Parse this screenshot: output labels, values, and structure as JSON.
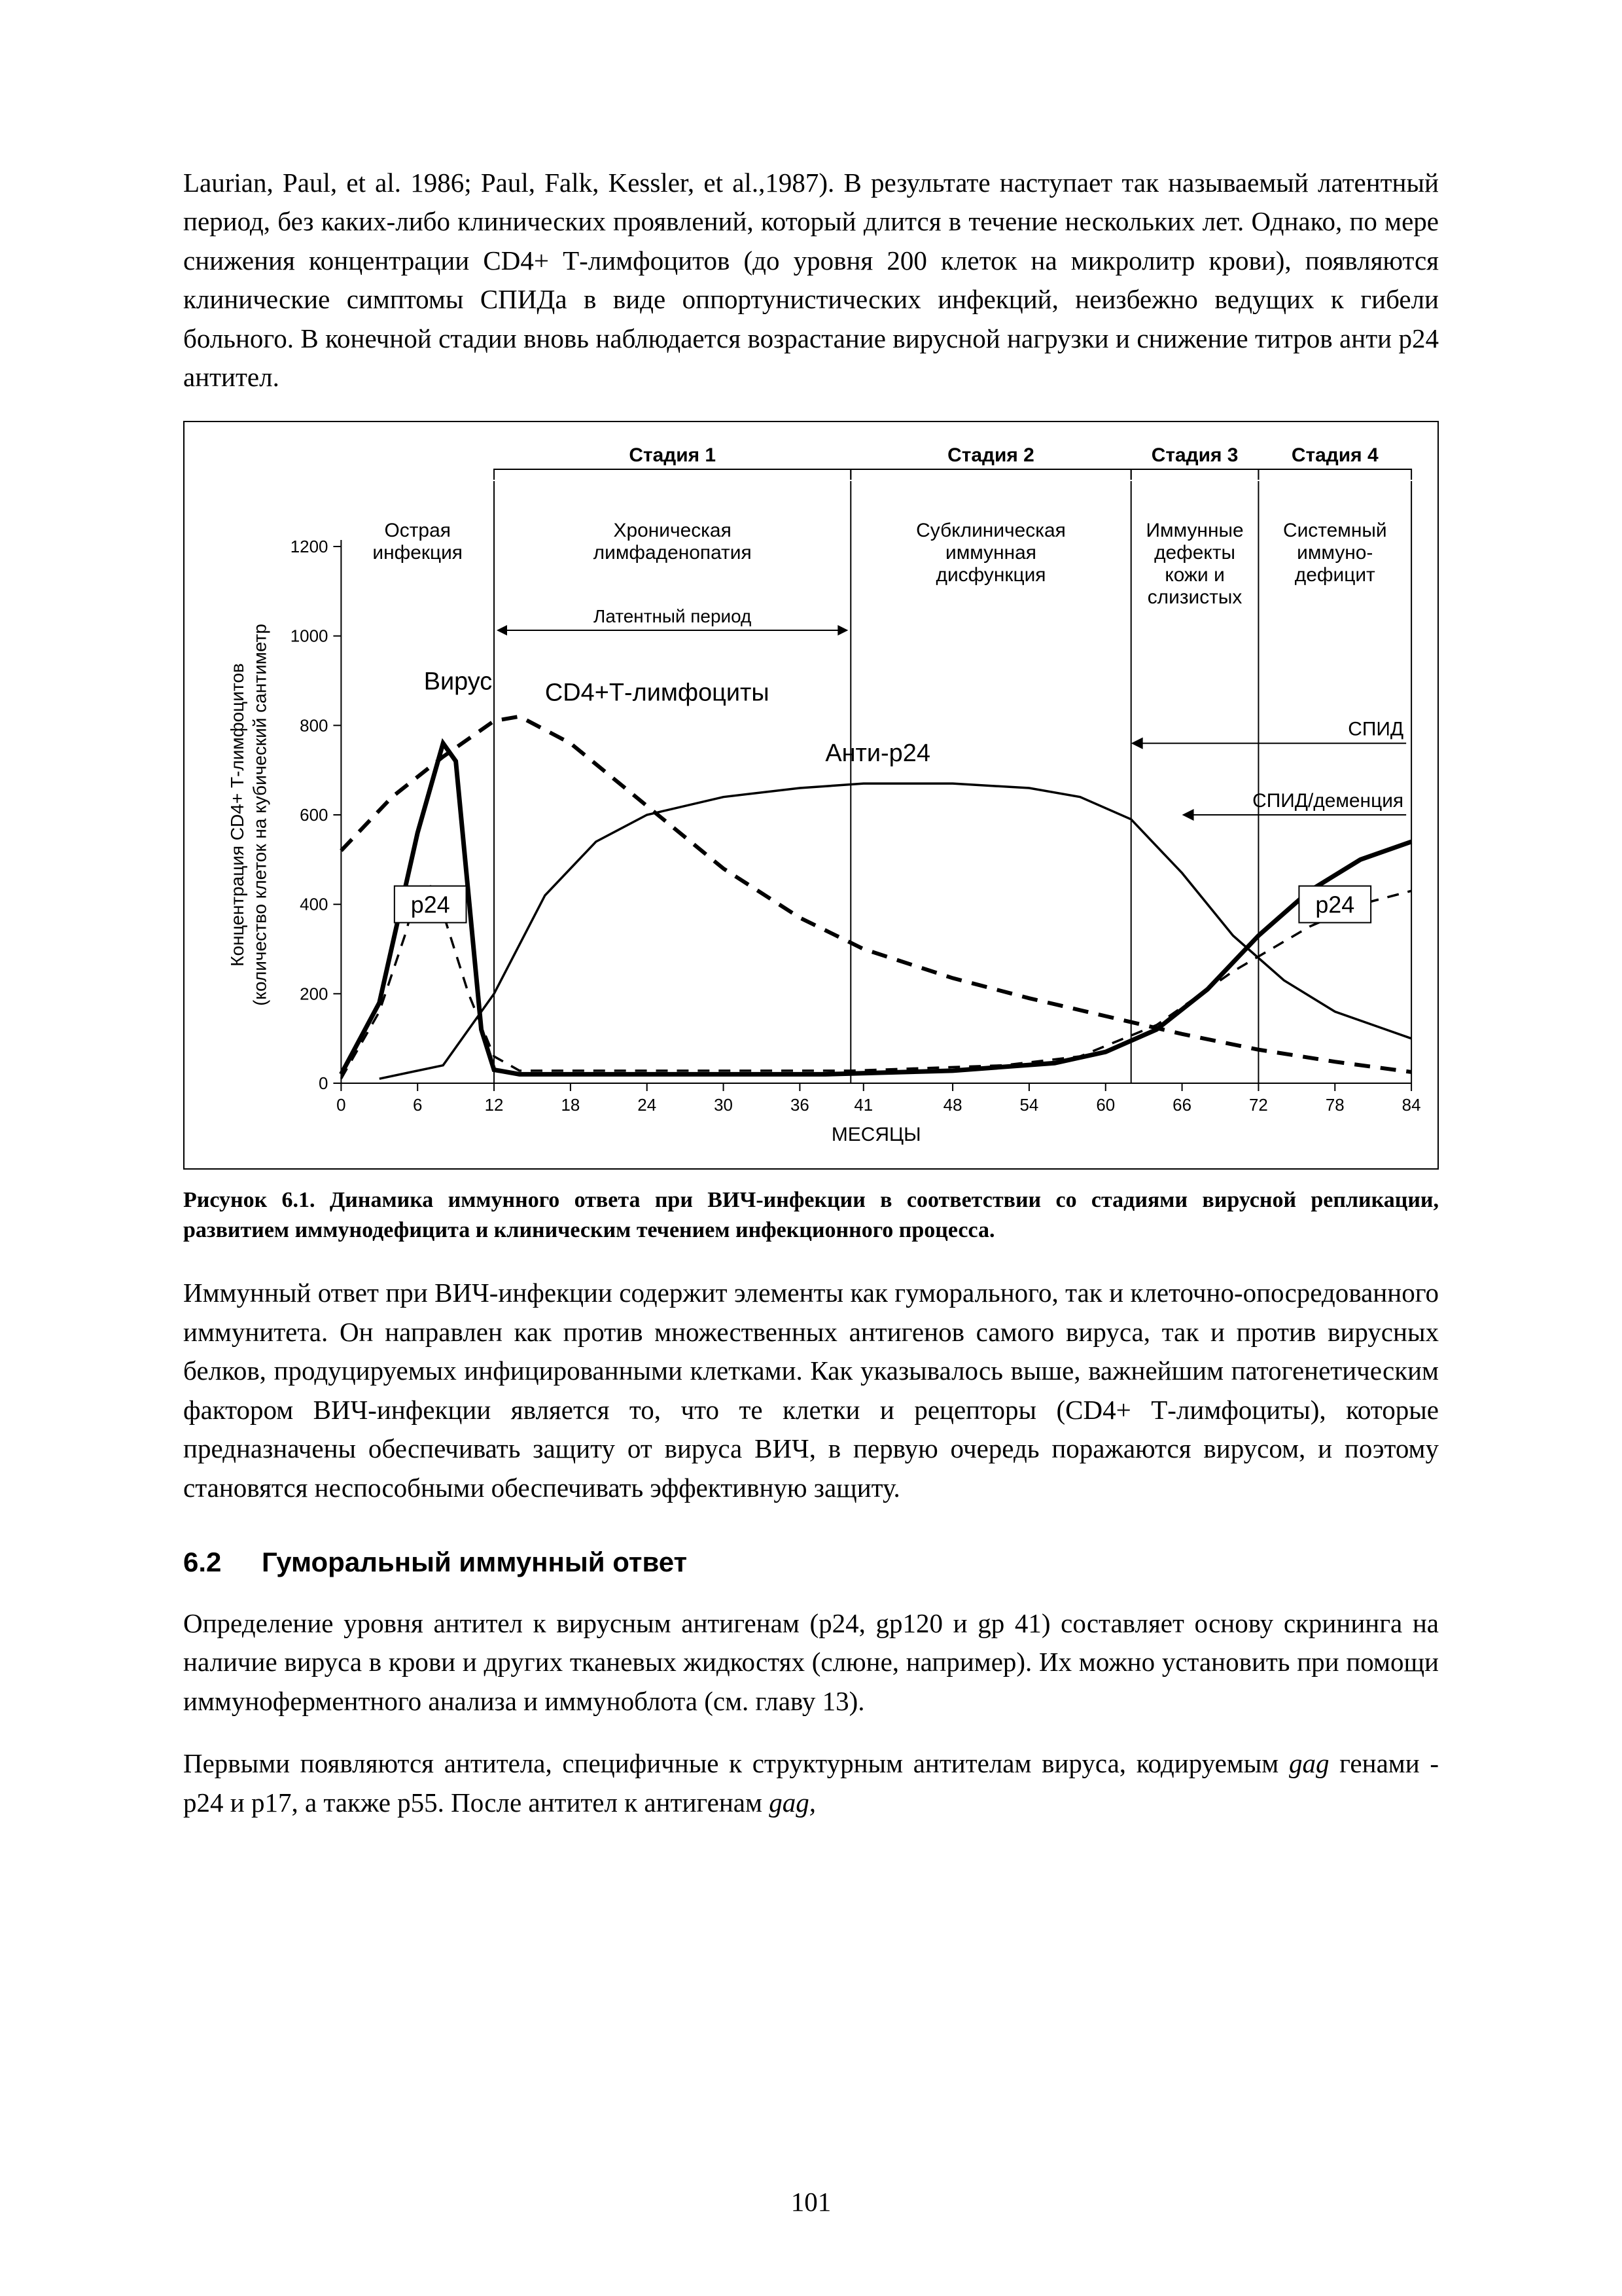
{
  "page_number": "101",
  "paragraphs": {
    "top": "Laurian, Paul, et al. 1986; Paul, Falk, Kessler, et al.,1987). В результате наступает так называемый латентный период, без каких-либо клинических проявлений, который длится в течение нескольких лет. Однако, по мере снижения концентрации CD4+ Т-лимфоцитов (до уровня 200 клеток на микролитр крови), появляются клинические симптомы СПИДа в виде оппортунистических инфекций, неизбежно ведущих к гибели больного. В конечной стадии вновь наблюдается возрастание вирусной нагрузки и снижение титров анти р24 антител.",
    "after_fig": "Иммунный ответ при ВИЧ-инфекции содержит элементы как гуморального, так и клеточно-опосредованного иммунитета. Он направлен как против множественных антигенов самого вируса, так и против вирусных белков, продуцируемых инфицированными клетками. Как указывалось выше, важнейшим патогенетическим фактором ВИЧ-инфекции является то, что те клетки и рецепторы (CD4+ Т-лимфоциты), которые предназначены обеспечивать защиту от вируса ВИЧ, в первую очередь поражаются вирусом, и поэтому становятся неспособными обеспечивать эффективную защиту.",
    "sec62_p1": "Определение уровня антител к вирусным антигенам (р24, gp120 и gp 41) составляет основу скрининга на наличие вируса в крови и других тканевых жидкостях (слюне, например). Их можно установить при помощи иммуноферментного анализа и иммуноблота (см. главу 13).",
    "sec62_p2_a": "Первыми появляются антитела, специфичные к структурным антителам вируса, кодируемым ",
    "sec62_p2_gag1": "gag",
    "sec62_p2_b": " генами - р24 и р17, а также р55. После антител к антигенам ",
    "sec62_p2_gag2": "gag,"
  },
  "section": {
    "number": "6.2",
    "title": "Гуморальный иммунный ответ"
  },
  "figure": {
    "caption": "Рисунок 6.1. Динамика иммунного ответа при ВИЧ-инфекции в соответствии со стадиями вирусной репликации, развитием иммунодефицита и клиническим течением инфекционного процесса.",
    "chart": {
      "y_axis": {
        "title_line1": "Концентрация CD4+ Т-лимфоцитов",
        "title_line2": "(количество клеток на кубический сантиметр",
        "min": 0,
        "max": 1200,
        "step": 200,
        "ticks": [
          0,
          200,
          400,
          600,
          800,
          1000,
          1200
        ]
      },
      "x_axis": {
        "title": "МЕСЯЦЫ",
        "ticks": [
          0,
          6,
          12,
          18,
          24,
          30,
          36,
          41,
          48,
          54,
          60,
          66,
          72,
          78,
          84
        ]
      },
      "stage_headers": [
        "Стадия 1",
        "Стадия 2",
        "Стадия 3",
        "Стадия 4"
      ],
      "stage_bounds_months": [
        12,
        40,
        62,
        72,
        84
      ],
      "stage_labels": [
        {
          "lines": [
            "Острая",
            "инфекция"
          ],
          "center_month": 6
        },
        {
          "lines": [
            "Хроническая",
            "лимфаденопатия"
          ],
          "center_month": 26
        },
        {
          "lines": [
            "Субклиническая",
            "иммунная",
            "дисфункция"
          ],
          "center_month": 51
        },
        {
          "lines": [
            "Иммунные",
            "дефекты",
            "кожи и",
            "слизистых"
          ],
          "center_month": 67
        },
        {
          "lines": [
            "Системный",
            "иммуно-",
            "дефицит"
          ],
          "center_month": 78
        }
      ],
      "latent_label": "Латентный период",
      "inline_labels": {
        "virus": "Вирус",
        "cd4": "CD4+Т-лимфоциты",
        "anti_p24": "Анти-p24",
        "p24_left": "p24",
        "p24_right": "p24"
      },
      "right_arrows": {
        "spid": "СПИД",
        "spid_dementia": "СПИД/деменция"
      },
      "series": {
        "virus": {
          "style": "solid-thick",
          "points": [
            [
              0,
              20
            ],
            [
              3,
              180
            ],
            [
              6,
              560
            ],
            [
              8,
              760
            ],
            [
              9,
              720
            ],
            [
              10,
              420
            ],
            [
              11,
              120
            ],
            [
              12,
              30
            ],
            [
              14,
              20
            ],
            [
              38,
              20
            ],
            [
              48,
              28
            ],
            [
              56,
              45
            ],
            [
              60,
              70
            ],
            [
              64,
              120
            ],
            [
              68,
              210
            ],
            [
              72,
              330
            ],
            [
              76,
              430
            ],
            [
              80,
              500
            ],
            [
              84,
              540
            ]
          ]
        },
        "cd4": {
          "style": "dashed-thick",
          "points": [
            [
              0,
              520
            ],
            [
              4,
              640
            ],
            [
              8,
              730
            ],
            [
              12,
              810
            ],
            [
              14,
              820
            ],
            [
              18,
              760
            ],
            [
              24,
              620
            ],
            [
              30,
              480
            ],
            [
              36,
              370
            ],
            [
              41,
              300
            ],
            [
              48,
              235
            ],
            [
              54,
              190
            ],
            [
              60,
              150
            ],
            [
              66,
              110
            ],
            [
              72,
              75
            ],
            [
              78,
              48
            ],
            [
              84,
              25
            ]
          ]
        },
        "anti_p24": {
          "style": "solid-thin",
          "points": [
            [
              3,
              10
            ],
            [
              8,
              40
            ],
            [
              12,
              200
            ],
            [
              16,
              420
            ],
            [
              20,
              540
            ],
            [
              24,
              600
            ],
            [
              30,
              640
            ],
            [
              36,
              660
            ],
            [
              41,
              670
            ],
            [
              48,
              670
            ],
            [
              54,
              660
            ],
            [
              58,
              640
            ],
            [
              62,
              590
            ],
            [
              66,
              470
            ],
            [
              70,
              330
            ],
            [
              74,
              230
            ],
            [
              78,
              160
            ],
            [
              82,
              120
            ],
            [
              84,
              100
            ]
          ]
        },
        "p24": {
          "style": "dashed-thin",
          "points": [
            [
              0,
              10
            ],
            [
              3,
              160
            ],
            [
              5,
              330
            ],
            [
              6,
              430
            ],
            [
              7,
              440
            ],
            [
              8,
              380
            ],
            [
              10,
              200
            ],
            [
              12,
              60
            ],
            [
              14,
              28
            ],
            [
              40,
              28
            ],
            [
              52,
              40
            ],
            [
              58,
              60
            ],
            [
              64,
              130
            ],
            [
              70,
              250
            ],
            [
              76,
              350
            ],
            [
              80,
              400
            ],
            [
              84,
              430
            ]
          ]
        }
      },
      "colors": {
        "stroke": "#000000",
        "background": "#ffffff"
      }
    }
  }
}
